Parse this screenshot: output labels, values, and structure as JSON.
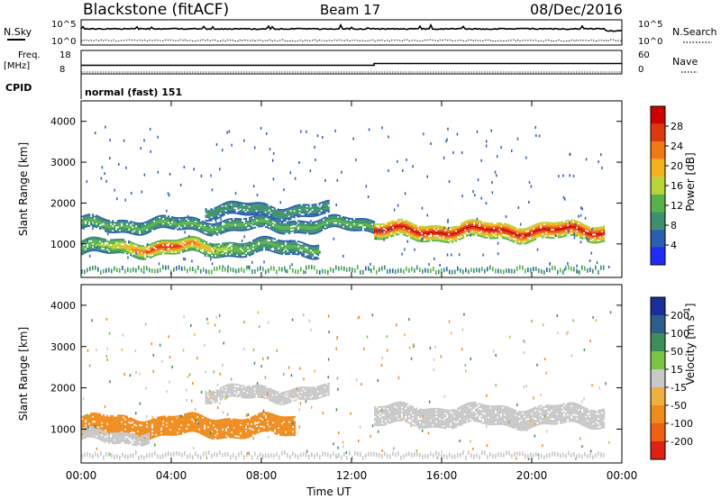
{
  "header": {
    "title": "Blackstone (fitACF)",
    "beam": "Beam 17",
    "date": "08/Dec/2016"
  },
  "noise_panel": {
    "left_label": "N.Sky",
    "right_label": "N.Search",
    "left_ticks": [
      "10^5",
      "10^0"
    ],
    "right_ticks": [
      "10^5",
      "10^0"
    ]
  },
  "freq_panel": {
    "left_label_1": "Freq.",
    "left_label_2": "[MHz]",
    "right_label": "Nave",
    "left_ticks": [
      "18",
      "8"
    ],
    "right_ticks": [
      "60",
      "0"
    ]
  },
  "cpid": {
    "label": "CPID",
    "value": "normal (fast) 151"
  },
  "colors": {
    "power_scale": [
      "#1f2bff",
      "#2a5fb0",
      "#3d8f6e",
      "#58b24a",
      "#b8d436",
      "#f2b21a",
      "#f07a12",
      "#e0380e",
      "#d10000"
    ],
    "velocity_scale": [
      "#1a2f9c",
      "#2c5e8a",
      "#3e8e5a",
      "#7cc443",
      "#c8c8c8",
      "#f0b040",
      "#f08a1a",
      "#f06010",
      "#e02010"
    ]
  },
  "chart_data": [
    {
      "type": "heatmap",
      "panel": "power",
      "xlabel": "Time UT",
      "ylabel": "Slant Range [km]",
      "xlim": [
        0,
        24
      ],
      "ylim": [
        180,
        4500
      ],
      "x_ticks": [
        "00:00",
        "04:00",
        "08:00",
        "12:00",
        "16:00",
        "20:00",
        "00:00"
      ],
      "y_ticks": [
        1000,
        2000,
        3000,
        4000
      ],
      "colorbar": {
        "label": "Power [dB]",
        "ticks": [
          4,
          8,
          12,
          16,
          20,
          24,
          28
        ],
        "range": [
          0,
          32
        ]
      },
      "echo_bands": [
        {
          "t_start": 0.0,
          "t_end": 10.5,
          "center_km": 900,
          "width_km": 350,
          "peak_db": 30,
          "peak_time": 3.7
        },
        {
          "t_start": 0.0,
          "t_end": 13.0,
          "center_km": 1450,
          "width_km": 300,
          "peak_db": 12
        },
        {
          "t_start": 5.5,
          "t_end": 11.0,
          "center_km": 1800,
          "width_km": 300,
          "peak_db": 10
        },
        {
          "t_start": 13.0,
          "t_end": 23.2,
          "center_km": 1300,
          "width_km": 400,
          "peak_db": 30
        }
      ]
    },
    {
      "type": "heatmap",
      "panel": "velocity",
      "xlabel": "Time UT",
      "ylabel": "Slant Range [km]",
      "xlim": [
        0,
        24
      ],
      "ylim": [
        180,
        4500
      ],
      "x_ticks": [
        "00:00",
        "04:00",
        "08:00",
        "12:00",
        "16:00",
        "20:00",
        "00:00"
      ],
      "y_ticks": [
        1000,
        2000,
        3000,
        4000
      ],
      "colorbar": {
        "label": "Velocity [m s^-1]",
        "ticks": [
          "200",
          "100",
          "50",
          "15",
          "-15",
          "-50",
          "-100",
          "-200"
        ],
        "range": [
          -250,
          250
        ]
      },
      "echo_bands": [
        {
          "t_start": 0.0,
          "t_end": 9.5,
          "center_km": 1050,
          "width_km": 450,
          "velocity": -70
        },
        {
          "t_start": 0.0,
          "t_end": 3.0,
          "center_km": 800,
          "width_km": 250,
          "velocity": 0
        },
        {
          "t_start": 5.5,
          "t_end": 11.0,
          "center_km": 1850,
          "width_km": 300,
          "velocity": 0
        },
        {
          "t_start": 13.0,
          "t_end": 23.2,
          "center_km": 1300,
          "width_km": 450,
          "velocity": 0
        }
      ]
    }
  ]
}
